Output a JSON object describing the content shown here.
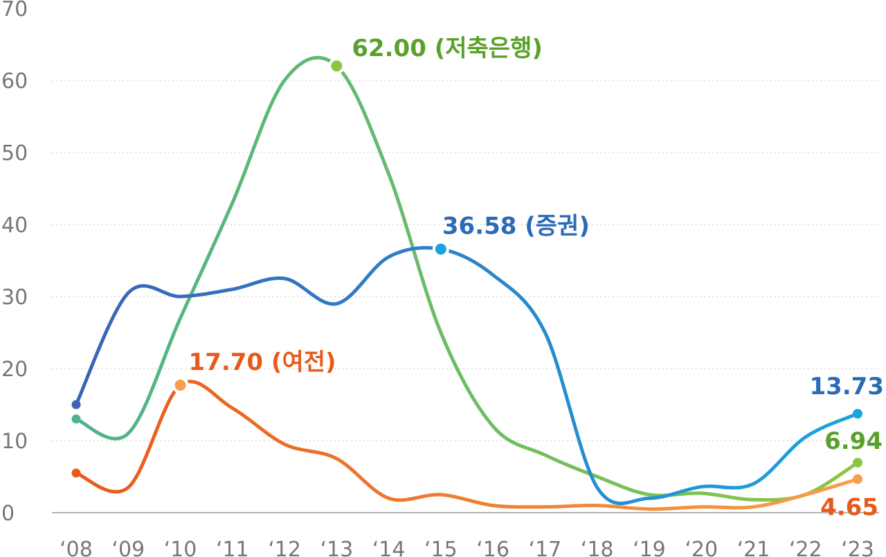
{
  "chart_data": {
    "type": "line",
    "title": "",
    "xlabel": "",
    "ylabel": "",
    "ylim": [
      0,
      70
    ],
    "y_ticks": [
      "0",
      "10",
      "20",
      "30",
      "40",
      "50",
      "60",
      "70"
    ],
    "categories": [
      "‘08",
      "‘09",
      "‘10",
      "‘11",
      "‘12",
      "‘13",
      "‘14",
      "‘15",
      "‘16",
      "‘17",
      "‘18",
      "‘19",
      "‘20",
      "‘21",
      "‘22",
      "‘23"
    ],
    "grid": true,
    "series": [
      {
        "name": "저축은행",
        "color_start": "#4db38a",
        "color_end": "#8cc63f",
        "values": [
          13.0,
          11.0,
          27.0,
          43.0,
          60.0,
          62.0,
          47.0,
          25.0,
          12.0,
          8.0,
          5.0,
          2.5,
          2.7,
          1.8,
          2.5,
          6.94
        ]
      },
      {
        "name": "증권",
        "color_start": "#3a64b5",
        "color_end": "#1ba3e0",
        "values": [
          15.0,
          30.5,
          30.0,
          31.0,
          32.5,
          29.0,
          35.5,
          36.58,
          33.0,
          25.0,
          3.5,
          2.0,
          3.6,
          4.0,
          10.5,
          13.73
        ]
      },
      {
        "name": "여전",
        "color_start": "#e85a1a",
        "color_end": "#f7a04a",
        "values": [
          5.5,
          3.5,
          17.7,
          14.5,
          9.5,
          7.5,
          2.0,
          2.5,
          1.0,
          0.8,
          1.0,
          0.5,
          0.8,
          0.8,
          2.5,
          4.65
        ]
      }
    ],
    "annotations": [
      {
        "series": 0,
        "index": 5,
        "text": "62.00 (저축은행)",
        "color": "#5aa02c"
      },
      {
        "series": 1,
        "index": 7,
        "text": "36.58 (증권)",
        "color": "#2a6bb6"
      },
      {
        "series": 2,
        "index": 2,
        "text": "17.70 (여전)",
        "color": "#e85a1a"
      },
      {
        "series": 1,
        "index": 15,
        "text": "13.73",
        "color": "#2a6bb6"
      },
      {
        "series": 0,
        "index": 15,
        "text": "6.94",
        "color": "#5aa02c"
      },
      {
        "series": 2,
        "index": 15,
        "text": "4.65",
        "color": "#e85a1a"
      }
    ]
  }
}
